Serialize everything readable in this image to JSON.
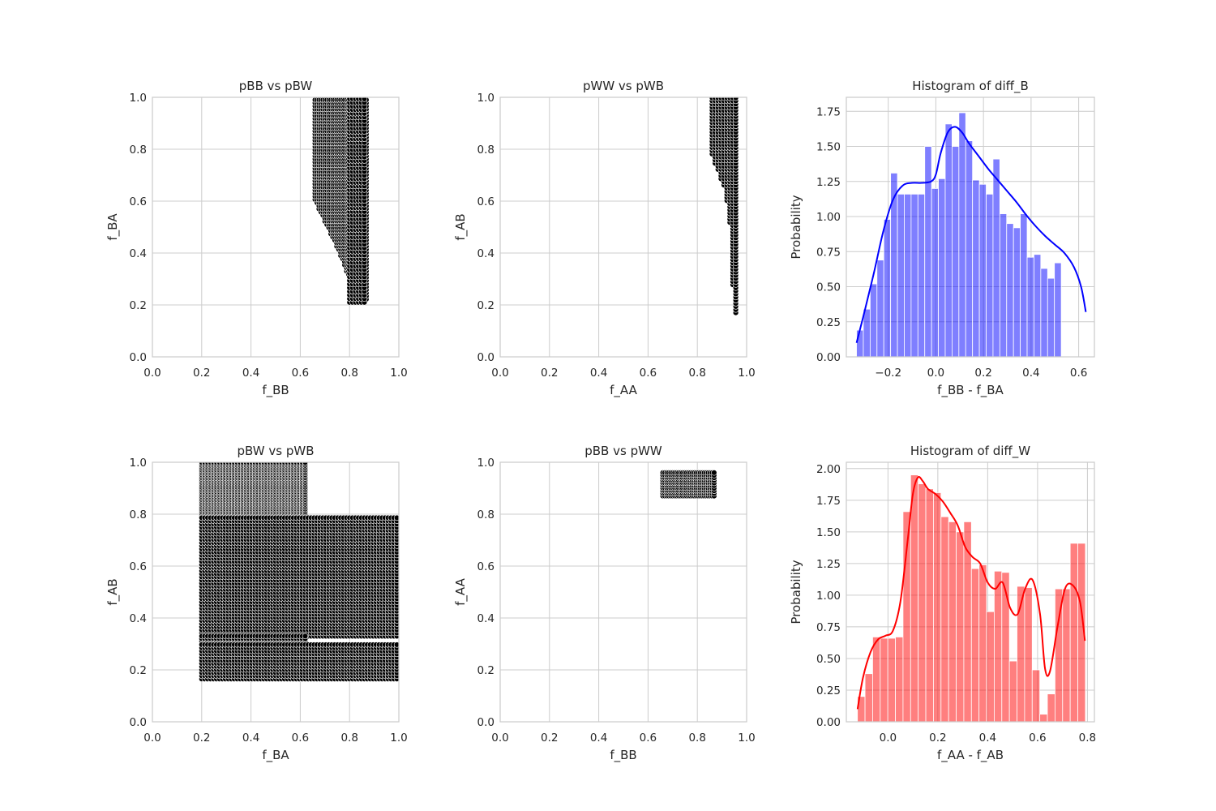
{
  "figure": {
    "background": "#ffffff"
  },
  "chart_data": [
    {
      "type": "scatter",
      "title": "pBB vs pBW",
      "xlabel": "f_BB",
      "ylabel": "f_BA",
      "xlim": [
        0,
        1
      ],
      "ylim": [
        0,
        1
      ],
      "xticks": [
        "0.0",
        "0.2",
        "0.4",
        "0.6",
        "0.8",
        "1.0"
      ],
      "yticks": [
        "0.0",
        "0.2",
        "0.4",
        "0.6",
        "0.8",
        "1.0"
      ],
      "grid": true,
      "marker_color": "#000000",
      "marker_edge": "#ffffff",
      "regions": [
        {
          "shape": "polygon",
          "points": [
            [
              0.66,
              1.0
            ],
            [
              0.87,
              1.0
            ],
            [
              0.87,
              0.22
            ],
            [
              0.84,
              0.21
            ],
            [
              0.82,
              0.24
            ],
            [
              0.8,
              0.3
            ],
            [
              0.76,
              0.4
            ],
            [
              0.72,
              0.48
            ],
            [
              0.66,
              0.6
            ]
          ],
          "step": [
            0.008,
            0.012
          ]
        },
        {
          "shape": "rect",
          "x": [
            0.8,
            0.87
          ],
          "y": [
            0.21,
            1.0
          ],
          "step": [
            0.012,
            0.014
          ]
        }
      ]
    },
    {
      "type": "scatter",
      "title": "pWW vs pWB",
      "xlabel": "f_AA",
      "ylabel": "f_AB",
      "xlim": [
        0,
        1
      ],
      "ylim": [
        0,
        1
      ],
      "xticks": [
        "0.0",
        "0.2",
        "0.4",
        "0.6",
        "0.8",
        "1.0"
      ],
      "yticks": [
        "0.0",
        "0.2",
        "0.4",
        "0.6",
        "0.8",
        "1.0"
      ],
      "grid": true,
      "marker_color": "#000000",
      "marker_edge": "#ffffff",
      "regions": [
        {
          "shape": "polygon",
          "points": [
            [
              0.86,
              1.0
            ],
            [
              0.965,
              1.0
            ],
            [
              0.965,
              0.17
            ],
            [
              0.95,
              0.17
            ],
            [
              0.94,
              0.35
            ],
            [
              0.93,
              0.55
            ],
            [
              0.91,
              0.65
            ],
            [
              0.88,
              0.72
            ],
            [
              0.86,
              0.78
            ]
          ],
          "step": [
            0.012,
            0.012
          ]
        }
      ]
    },
    {
      "type": "histogram",
      "title": "Histogram of diff_B",
      "xlabel": "f_BB - f_BA",
      "ylabel": "Probability",
      "xlim": [
        -0.376,
        0.666
      ],
      "ylim": [
        0,
        1.85
      ],
      "xticks": [
        -0.2,
        0.0,
        0.2,
        0.4,
        0.6
      ],
      "xtick_labels": [
        "−0.2",
        "0.0",
        "0.2",
        "0.4",
        "0.6"
      ],
      "yticks": [
        0.0,
        0.25,
        0.5,
        0.75,
        1.0,
        1.25,
        1.5,
        1.75
      ],
      "ytick_labels": [
        "0.00",
        "0.25",
        "0.50",
        "0.75",
        "1.00",
        "1.25",
        "1.50",
        "1.75"
      ],
      "grid": true,
      "bar_color": "#0000ff",
      "bar_alpha": 0.5,
      "line_color": "#0000ff",
      "bin_start": -0.3333,
      "bin_width": 0.02867,
      "values": [
        0.19,
        0.34,
        0.52,
        0.69,
        0.98,
        1.31,
        1.16,
        1.16,
        1.16,
        1.16,
        1.5,
        1.2,
        1.27,
        1.66,
        1.5,
        1.74,
        1.54,
        1.26,
        1.23,
        1.16,
        1.41,
        1.02,
        0.95,
        0.92,
        1.02,
        0.71,
        0.73,
        0.63,
        0.56,
        0.67
      ],
      "kde": {
        "x": [
          -0.333,
          -0.3,
          -0.26,
          -0.22,
          -0.18,
          -0.14,
          -0.1,
          -0.06,
          -0.02,
          0.0,
          0.02,
          0.05,
          0.08,
          0.11,
          0.14,
          0.18,
          0.22,
          0.26,
          0.3,
          0.34,
          0.38,
          0.42,
          0.46,
          0.5,
          0.54,
          0.58,
          0.61,
          0.63
        ],
        "y": [
          0.1,
          0.32,
          0.6,
          0.9,
          1.12,
          1.22,
          1.24,
          1.24,
          1.25,
          1.3,
          1.45,
          1.6,
          1.64,
          1.6,
          1.52,
          1.43,
          1.34,
          1.26,
          1.18,
          1.1,
          1.01,
          0.93,
          0.86,
          0.8,
          0.74,
          0.64,
          0.5,
          0.32
        ]
      }
    },
    {
      "type": "scatter",
      "title": "pBW vs pWB",
      "xlabel": "f_BA",
      "ylabel": "f_AB",
      "xlim": [
        0,
        1
      ],
      "ylim": [
        0,
        1
      ],
      "xticks": [
        "0.0",
        "0.2",
        "0.4",
        "0.6",
        "0.8",
        "1.0"
      ],
      "yticks": [
        "0.0",
        "0.2",
        "0.4",
        "0.6",
        "0.8",
        "1.0"
      ],
      "grid": true,
      "marker_color": "#000000",
      "marker_edge": "#ffffff",
      "regions": [
        {
          "shape": "rect",
          "x": [
            0.2,
            0.63
          ],
          "y": [
            0.79,
            1.0
          ],
          "step": [
            0.012,
            0.006
          ]
        },
        {
          "shape": "rect",
          "x": [
            0.2,
            1.0
          ],
          "y": [
            0.33,
            0.79
          ],
          "step": [
            0.012,
            0.012
          ]
        },
        {
          "shape": "rect",
          "x": [
            0.2,
            0.63
          ],
          "y": [
            0.3,
            0.33
          ],
          "step": [
            0.012,
            0.01
          ]
        },
        {
          "shape": "rect",
          "x": [
            0.2,
            1.0
          ],
          "y": [
            0.165,
            0.3
          ],
          "step": [
            0.012,
            0.012
          ]
        }
      ]
    },
    {
      "type": "scatter",
      "title": "pBB vs pWW",
      "xlabel": "f_BB",
      "ylabel": "f_AA",
      "xlim": [
        0,
        1
      ],
      "ylim": [
        0,
        1
      ],
      "xticks": [
        "0.0",
        "0.2",
        "0.4",
        "0.6",
        "0.8",
        "1.0"
      ],
      "yticks": [
        "0.0",
        "0.2",
        "0.4",
        "0.6",
        "0.8",
        "1.0"
      ],
      "grid": true,
      "marker_color": "#000000",
      "marker_edge": "#ffffff",
      "regions": [
        {
          "shape": "rect",
          "x": [
            0.66,
            0.87
          ],
          "y": [
            0.87,
            0.965
          ],
          "step": [
            0.008,
            0.01
          ]
        }
      ]
    },
    {
      "type": "histogram",
      "title": "Histogram of diff_W",
      "xlabel": "f_AA - f_AB",
      "ylabel": "Probability",
      "xlim": [
        -0.167,
        0.828
      ],
      "ylim": [
        0,
        2.05
      ],
      "xticks": [
        0.0,
        0.2,
        0.4,
        0.6,
        0.8
      ],
      "xtick_labels": [
        "0.0",
        "0.2",
        "0.4",
        "0.6",
        "0.8"
      ],
      "yticks": [
        0.0,
        0.25,
        0.5,
        0.75,
        1.0,
        1.25,
        1.5,
        1.75,
        2.0
      ],
      "ytick_labels": [
        "0.00",
        "0.25",
        "0.50",
        "0.75",
        "1.00",
        "1.25",
        "1.50",
        "1.75",
        "2.00"
      ],
      "grid": true,
      "bar_color": "#ff0000",
      "bar_alpha": 0.5,
      "line_color": "#ff0000",
      "bin_start": -0.1225,
      "bin_width": 0.03048,
      "values": [
        0.2,
        0.38,
        0.67,
        0.66,
        0.66,
        0.67,
        1.66,
        1.95,
        1.88,
        1.84,
        1.81,
        1.62,
        1.58,
        1.5,
        1.58,
        1.21,
        1.24,
        0.87,
        1.19,
        1.18,
        0.48,
        1.07,
        1.06,
        0.41,
        0.06,
        0.22,
        1.05,
        1.05,
        1.41,
        1.41
      ],
      "kde": {
        "x": [
          -0.122,
          -0.1,
          -0.07,
          -0.04,
          -0.01,
          0.02,
          0.05,
          0.08,
          0.1,
          0.12,
          0.14,
          0.16,
          0.19,
          0.22,
          0.25,
          0.28,
          0.31,
          0.34,
          0.37,
          0.4,
          0.43,
          0.46,
          0.49,
          0.52,
          0.55,
          0.58,
          0.61,
          0.63,
          0.65,
          0.68,
          0.71,
          0.74,
          0.77,
          0.79
        ],
        "y": [
          0.1,
          0.35,
          0.55,
          0.65,
          0.68,
          0.72,
          0.95,
          1.45,
          1.8,
          1.93,
          1.9,
          1.84,
          1.8,
          1.74,
          1.65,
          1.55,
          1.38,
          1.3,
          1.25,
          1.1,
          1.05,
          1.1,
          0.9,
          0.85,
          1.05,
          1.12,
          0.85,
          0.42,
          0.4,
          0.75,
          1.05,
          1.08,
          0.95,
          0.64
        ]
      }
    }
  ]
}
